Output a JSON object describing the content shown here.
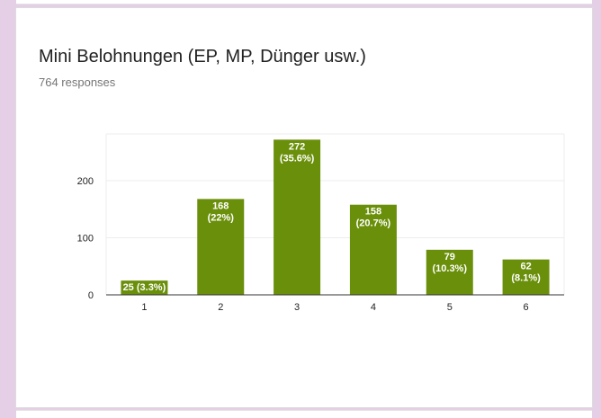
{
  "question": {
    "title": "Mini Belohnungen (EP, MP, Dünger usw.)",
    "responses": "764 responses"
  },
  "colors": {
    "bar": "#6a8f0a",
    "grid": "#ececec",
    "axis": "#333333",
    "label_text": "#ffffff",
    "tick_text": "#222222"
  },
  "chart_data": {
    "type": "bar",
    "title": "",
    "xlabel": "",
    "ylabel": "",
    "categories": [
      "1",
      "2",
      "3",
      "4",
      "5",
      "6"
    ],
    "values": [
      25,
      168,
      272,
      158,
      79,
      62
    ],
    "data_labels": [
      [
        "25 (3.3%)"
      ],
      [
        "168",
        "(22%)"
      ],
      [
        "272",
        "(35.6%)"
      ],
      [
        "158",
        "(20.7%)"
      ],
      [
        "79",
        "(10.3%)"
      ],
      [
        "62",
        "(8.1%)"
      ]
    ],
    "yticks": [
      0,
      100,
      200
    ],
    "ylim": [
      0,
      282
    ],
    "grid": true,
    "legend": "none"
  }
}
